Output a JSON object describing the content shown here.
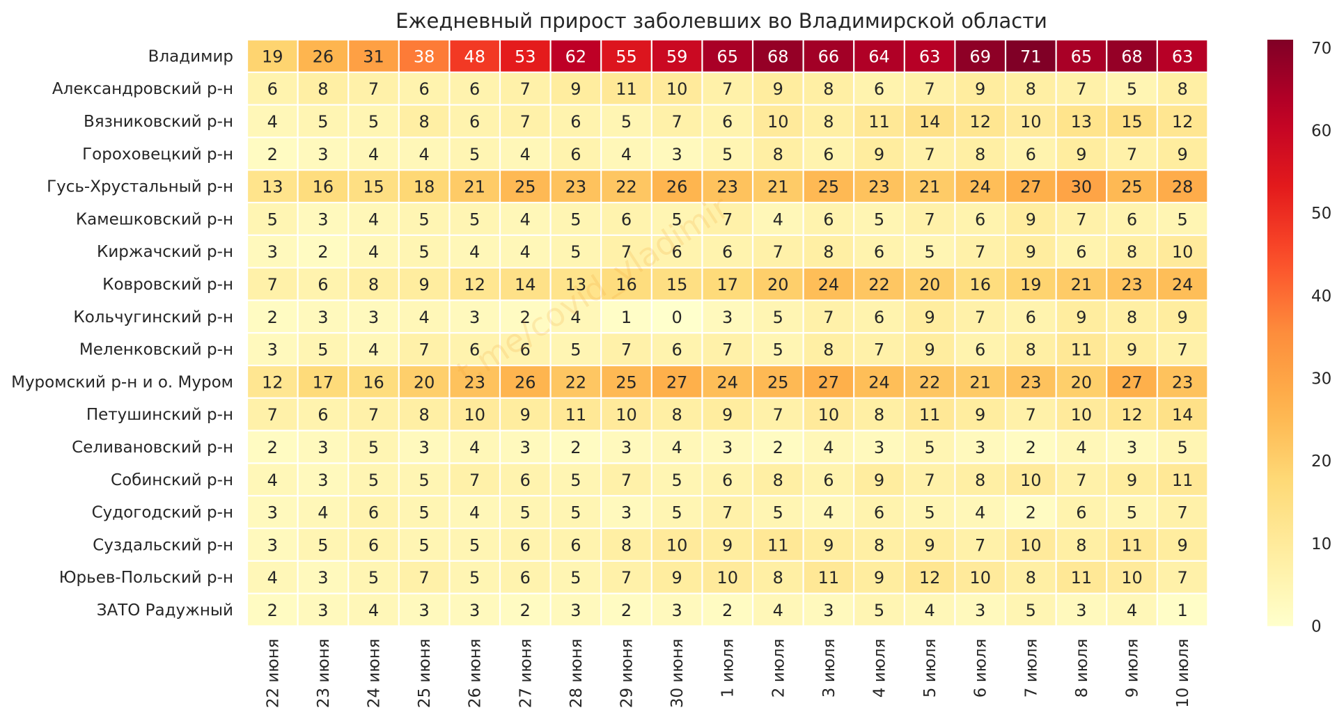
{
  "chart_data": {
    "type": "heatmap",
    "title": "Ежедневный прирост заболевших во Владимирской области",
    "watermark": "t.me/covid_vladimir",
    "columns": [
      "22 июня",
      "23 июня",
      "24 июня",
      "25 июня",
      "26 июня",
      "27 июня",
      "28 июня",
      "29 июня",
      "30 июня",
      "1 июля",
      "2 июля",
      "3 июля",
      "4 июля",
      "5 июля",
      "6 июля",
      "7 июля",
      "8 июля",
      "9 июля",
      "10 июля"
    ],
    "rows": [
      {
        "name": "Владимир",
        "values": [
          19,
          26,
          31,
          38,
          48,
          53,
          62,
          55,
          59,
          65,
          68,
          66,
          64,
          63,
          69,
          71,
          65,
          68,
          63
        ]
      },
      {
        "name": "Александровский р-н",
        "values": [
          6,
          8,
          7,
          6,
          6,
          7,
          9,
          11,
          10,
          7,
          9,
          8,
          6,
          7,
          9,
          8,
          7,
          5,
          8
        ]
      },
      {
        "name": "Вязниковский р-н",
        "values": [
          4,
          5,
          5,
          8,
          6,
          7,
          6,
          5,
          7,
          6,
          10,
          8,
          11,
          14,
          12,
          10,
          13,
          15,
          12
        ]
      },
      {
        "name": "Гороховецкий р-н",
        "values": [
          2,
          3,
          4,
          4,
          5,
          4,
          6,
          4,
          3,
          5,
          8,
          6,
          9,
          7,
          8,
          6,
          9,
          7,
          9
        ]
      },
      {
        "name": "Гусь-Хрустальный р-н",
        "values": [
          13,
          16,
          15,
          18,
          21,
          25,
          23,
          22,
          26,
          23,
          21,
          25,
          23,
          21,
          24,
          27,
          30,
          25,
          28
        ]
      },
      {
        "name": "Камешковский р-н",
        "values": [
          5,
          3,
          4,
          5,
          5,
          4,
          5,
          6,
          5,
          7,
          4,
          6,
          5,
          7,
          6,
          9,
          7,
          6,
          5
        ]
      },
      {
        "name": "Киржачский р-н",
        "values": [
          3,
          2,
          4,
          5,
          4,
          4,
          5,
          7,
          6,
          6,
          7,
          8,
          6,
          5,
          7,
          9,
          6,
          8,
          10
        ]
      },
      {
        "name": "Ковровский р-н",
        "values": [
          7,
          6,
          8,
          9,
          12,
          14,
          13,
          16,
          15,
          17,
          20,
          24,
          22,
          20,
          16,
          19,
          21,
          23,
          24
        ]
      },
      {
        "name": "Кольчугинский р-н",
        "values": [
          2,
          3,
          3,
          4,
          3,
          2,
          4,
          1,
          0,
          3,
          5,
          7,
          6,
          9,
          7,
          6,
          9,
          8,
          9
        ]
      },
      {
        "name": "Меленковский р-н",
        "values": [
          3,
          5,
          4,
          7,
          6,
          6,
          5,
          7,
          6,
          7,
          5,
          8,
          7,
          9,
          6,
          8,
          11,
          9,
          7
        ]
      },
      {
        "name": "Муромский р-н и о. Муром",
        "values": [
          12,
          17,
          16,
          20,
          23,
          26,
          22,
          25,
          27,
          24,
          25,
          27,
          24,
          22,
          21,
          23,
          20,
          27,
          23
        ]
      },
      {
        "name": "Петушинский р-н",
        "values": [
          7,
          6,
          7,
          8,
          10,
          9,
          11,
          10,
          8,
          9,
          7,
          10,
          8,
          11,
          9,
          7,
          10,
          12,
          14
        ]
      },
      {
        "name": "Селивановский р-н",
        "values": [
          2,
          3,
          5,
          3,
          4,
          3,
          2,
          3,
          4,
          3,
          2,
          4,
          3,
          5,
          3,
          2,
          4,
          3,
          5
        ]
      },
      {
        "name": "Собинский р-н",
        "values": [
          4,
          3,
          5,
          5,
          7,
          6,
          5,
          7,
          5,
          6,
          8,
          6,
          9,
          7,
          8,
          10,
          7,
          9,
          11
        ]
      },
      {
        "name": "Судогодский р-н",
        "values": [
          3,
          4,
          6,
          5,
          4,
          5,
          5,
          3,
          5,
          7,
          5,
          4,
          6,
          5,
          4,
          2,
          6,
          5,
          7
        ]
      },
      {
        "name": "Суздальский р-н",
        "values": [
          3,
          5,
          6,
          5,
          5,
          6,
          6,
          8,
          10,
          9,
          11,
          9,
          8,
          9,
          7,
          10,
          8,
          11,
          9
        ]
      },
      {
        "name": "Юрьев-Польский р-н",
        "values": [
          4,
          3,
          5,
          7,
          5,
          6,
          5,
          7,
          9,
          10,
          8,
          11,
          9,
          12,
          10,
          8,
          11,
          10,
          7
        ]
      },
      {
        "name": "ЗАТО Радужный",
        "values": [
          2,
          3,
          4,
          3,
          3,
          2,
          3,
          2,
          3,
          2,
          4,
          3,
          5,
          4,
          3,
          5,
          3,
          4,
          1
        ]
      }
    ],
    "colorbar": {
      "range": [
        0,
        71
      ],
      "ticks": [
        0,
        10,
        20,
        30,
        40,
        50,
        60,
        70
      ],
      "colormap": "YlOrRd"
    },
    "colors": {
      "cell_border": "#ffffff",
      "text_dark": "#262626",
      "text_light": "#ffffff"
    }
  }
}
